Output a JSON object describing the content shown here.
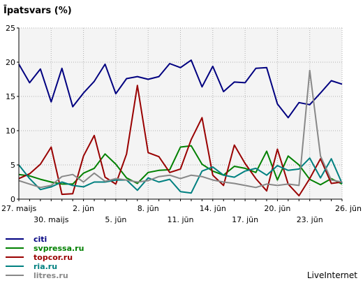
{
  "chart_data": {
    "type": "line",
    "title": "Īpatsvars (%)",
    "ylim": [
      0,
      25
    ],
    "yticks": [
      0,
      5,
      10,
      15,
      20,
      25
    ],
    "grid": true,
    "legend_position": "bottom-left",
    "watermark": "LiveInternet",
    "x_tick_labels_row1": [
      {
        "index": 0,
        "label": "27. maijs"
      },
      {
        "index": 6,
        "label": "2. jūn"
      },
      {
        "index": 12,
        "label": "8. jūn"
      },
      {
        "index": 18,
        "label": "14. jūn"
      },
      {
        "index": 24,
        "label": "20. jūn"
      },
      {
        "index": 30,
        "label": "26. jūn"
      }
    ],
    "x_tick_labels_row2": [
      {
        "index": 3,
        "label": "30. maijs"
      },
      {
        "index": 9,
        "label": "5. jūn"
      },
      {
        "index": 15,
        "label": "11. jūn"
      },
      {
        "index": 21,
        "label": "17. jūn"
      },
      {
        "index": 27,
        "label": "23. jūn"
      }
    ],
    "series": [
      {
        "name": "citi",
        "color": "#000080",
        "values": [
          19.7,
          17.0,
          19.0,
          14.2,
          19.1,
          13.5,
          15.5,
          17.2,
          19.7,
          15.4,
          17.6,
          17.9,
          17.5,
          17.9,
          19.8,
          19.2,
          20.3,
          16.4,
          19.4,
          15.7,
          17.1,
          17.0,
          19.1,
          19.2,
          13.9,
          11.9,
          14.1,
          13.8,
          15.5,
          17.3,
          16.8
        ]
      },
      {
        "name": "svpressa.ru",
        "color": "#008000",
        "values": [
          3.6,
          3.4,
          2.9,
          2.5,
          2.2,
          2.2,
          3.8,
          4.5,
          6.6,
          5.1,
          3.1,
          2.3,
          3.9,
          4.2,
          4.3,
          7.6,
          7.8,
          5.1,
          4.1,
          3.5,
          4.8,
          4.5,
          3.9,
          7.0,
          2.8,
          6.3,
          5.0,
          2.9,
          2.1,
          3.0,
          2.2
        ]
      },
      {
        "name": "topcor.ru",
        "color": "#990000",
        "values": [
          3.0,
          3.7,
          5.1,
          7.6,
          0.7,
          0.8,
          6.3,
          9.3,
          3.2,
          2.2,
          6.6,
          16.6,
          6.8,
          6.2,
          3.9,
          4.4,
          8.7,
          11.9,
          3.5,
          2.0,
          7.9,
          5.2,
          3.0,
          1.2,
          7.3,
          2.2,
          0.5,
          3.0,
          5.9,
          2.3,
          2.5
        ]
      },
      {
        "name": "ria.ru",
        "color": "#008080",
        "values": [
          5.0,
          3.0,
          1.4,
          1.8,
          2.5,
          2.0,
          1.8,
          2.5,
          2.5,
          2.8,
          2.8,
          1.3,
          3.1,
          2.5,
          2.9,
          1.1,
          0.9,
          4.1,
          4.7,
          3.5,
          3.2,
          4.1,
          4.5,
          3.5,
          4.9,
          4.2,
          4.4,
          6.0,
          3.1,
          5.9,
          2.3
        ]
      },
      {
        "name": "litres.ru",
        "color": "#888888",
        "values": [
          2.7,
          2.2,
          1.7,
          2.0,
          3.3,
          3.6,
          2.5,
          3.8,
          2.6,
          3.0,
          2.8,
          2.5,
          2.7,
          3.3,
          3.5,
          3.0,
          3.5,
          3.3,
          2.8,
          2.5,
          2.3,
          2.0,
          1.7,
          2.2,
          2.0,
          2.2,
          2.0,
          18.8,
          6.3,
          2.8,
          2.5
        ]
      }
    ]
  }
}
